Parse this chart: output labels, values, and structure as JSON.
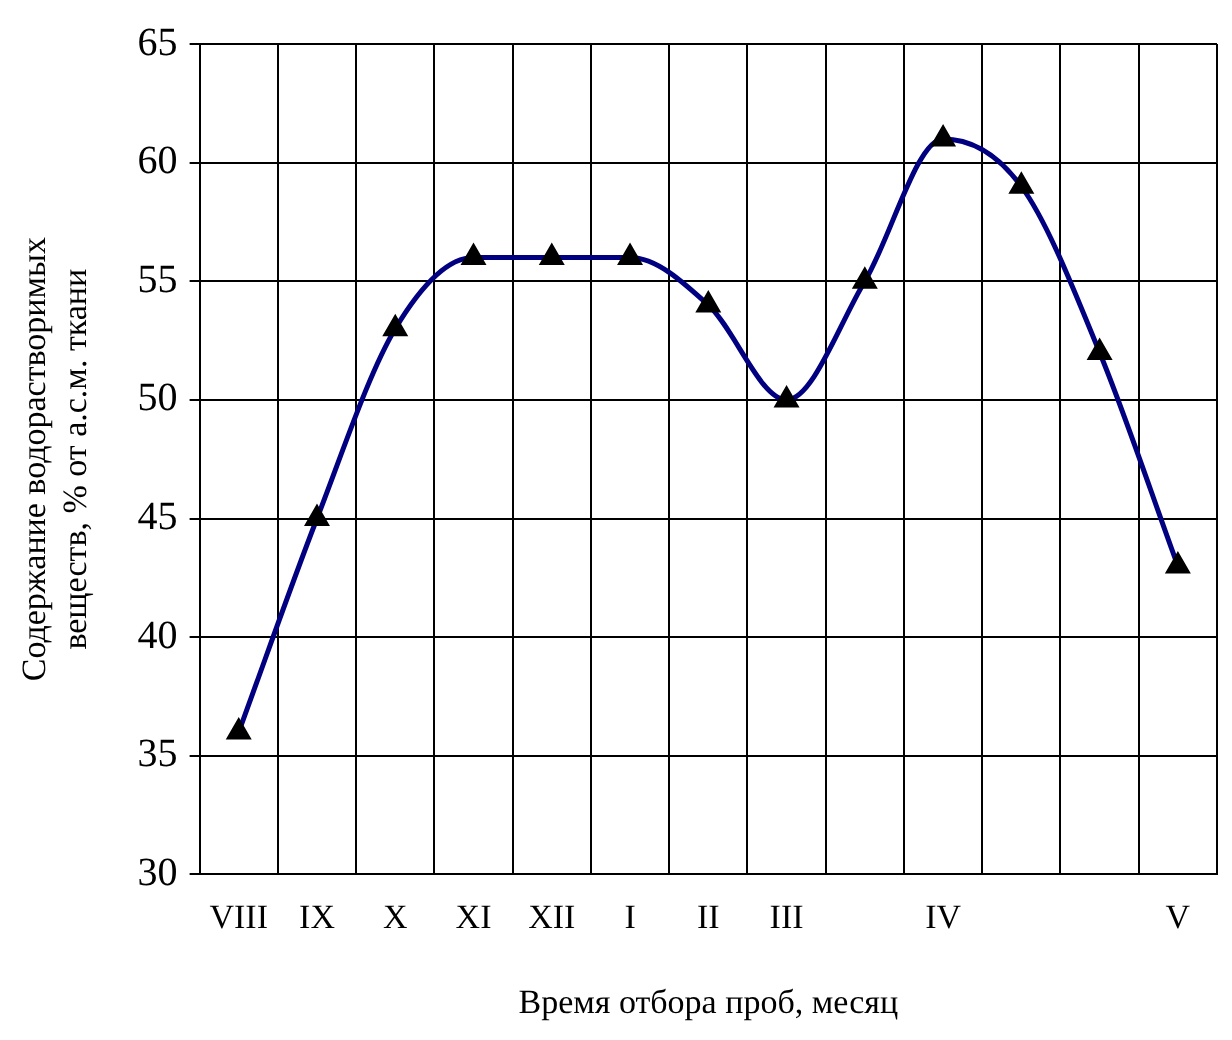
{
  "chart_data": {
    "type": "line",
    "xlabel": "Время отбора проб, месяц",
    "ylabel": "Содержание водорастворимых\nвеществ, % от а.с.м. ткани",
    "categories": [
      "VIII",
      "IX",
      "X",
      "XI",
      "XII",
      "I",
      "II",
      "III",
      null,
      "IV",
      null,
      null,
      "V"
    ],
    "series": [
      {
        "color": "#000080",
        "values": [
          36,
          45,
          53,
          56,
          56,
          56,
          54,
          50,
          55,
          61,
          59,
          52,
          43
        ]
      }
    ],
    "ylim": [
      30,
      65
    ],
    "yticks": [
      30,
      35,
      40,
      45,
      50,
      55,
      60,
      65
    ],
    "grid": true,
    "legend": false,
    "marker": "triangle",
    "line_style": "solid"
  }
}
